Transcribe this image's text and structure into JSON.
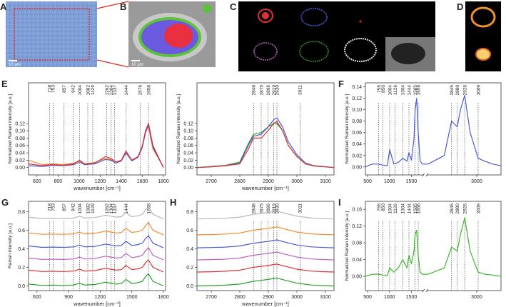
{
  "images": [
    {
      "panel": "A",
      "scale_bar": "10 µm"
    },
    {
      "panel": "B",
      "scale_bar": "10 µm"
    },
    {
      "panel": "C"
    },
    {
      "panel": "D"
    }
  ],
  "chart_data": [
    {
      "type": "line",
      "panel": "E",
      "xlabel": "wavenumber [cm⁻¹]",
      "ylabel": "Normalized Raman intensity [a.u.]",
      "xlim": [
        520,
        1820
      ],
      "xticks": [
        600,
        800,
        1000,
        1200,
        1400,
        1600,
        1800
      ],
      "ylim": [
        -0.02,
        0.23
      ],
      "yticks": [
        {
          "value": 0,
          "label": "0.00"
        },
        0.02,
        0.04,
        0.06,
        0.08,
        {
          "value": 0.1,
          "label": "0.10"
        },
        0.12
      ],
      "peaks": [
        718,
        753,
        857,
        942,
        1004,
        1082,
        1129,
        1262,
        1304,
        1337,
        1444,
        1579,
        1658
      ],
      "x": [
        520,
        650,
        750,
        850,
        950,
        1004,
        1050,
        1150,
        1250,
        1300,
        1350,
        1400,
        1444,
        1500,
        1560,
        1600,
        1630,
        1658,
        1700,
        1800
      ],
      "series": [
        {
          "color": "#f08c30",
          "values": [
            0.02,
            0.008,
            0.01,
            0.008,
            0.012,
            0.018,
            0.01,
            0.014,
            0.025,
            0.022,
            0.015,
            0.02,
            0.04,
            0.02,
            0.03,
            0.058,
            0.1,
            0.11,
            0.05,
            0.002
          ]
        },
        {
          "color": "#4a5bd8",
          "values": [
            0.005,
            0.003,
            0.006,
            0.005,
            0.008,
            0.015,
            0.008,
            0.01,
            0.022,
            0.02,
            0.012,
            0.018,
            0.04,
            0.018,
            0.028,
            0.055,
            0.095,
            0.115,
            0.055,
            0.0
          ]
        },
        {
          "color": "#e03030",
          "values": [
            0.01,
            0.005,
            0.008,
            0.006,
            0.01,
            0.02,
            0.01,
            0.012,
            0.03,
            0.025,
            0.015,
            0.02,
            0.045,
            0.02,
            0.03,
            0.06,
            0.1,
            0.12,
            0.06,
            0.0
          ]
        }
      ]
    },
    {
      "type": "line",
      "xlabel": "wavenumber [cm⁻¹]",
      "ylabel": "Normalized Raman intensity [a.u.]",
      "xlim": [
        2650,
        3130
      ],
      "xticks": [
        2700,
        2800,
        2900,
        3000,
        3100
      ],
      "ylim": [
        -0.02,
        0.23
      ],
      "yticks": [
        {
          "value": 0,
          "label": "0.00"
        },
        0.02,
        0.04,
        0.06,
        0.08,
        {
          "value": 0.1,
          "label": "0.10"
        },
        0.12
      ],
      "peaks": [
        2848,
        2875,
        2899,
        2919,
        2930,
        3011
      ],
      "x": [
        2650,
        2700,
        2750,
        2800,
        2830,
        2848,
        2875,
        2899,
        2919,
        2930,
        2950,
        2970,
        3000,
        3030,
        3060,
        3100,
        3130
      ],
      "series": [
        {
          "color": "#2aa02a",
          "values": [
            0,
            0.003,
            0.006,
            0.015,
            0.065,
            0.09,
            0.095,
            0.11,
            0.12,
            0.12,
            0.1,
            0.06,
            0.03,
            0.01,
            0.004,
            0.002,
            0
          ]
        },
        {
          "color": "#4a5bd8",
          "values": [
            0,
            0.002,
            0.005,
            0.012,
            0.06,
            0.085,
            0.09,
            0.11,
            0.13,
            0.135,
            0.11,
            0.07,
            0.035,
            0.012,
            0.005,
            0.002,
            0
          ]
        },
        {
          "color": "#e03030",
          "values": [
            0,
            0.002,
            0.005,
            0.01,
            0.05,
            0.08,
            0.08,
            0.1,
            0.12,
            0.125,
            0.1,
            0.06,
            0.03,
            0.01,
            0.005,
            0.002,
            0
          ]
        }
      ]
    },
    {
      "type": "line",
      "panel": "F",
      "ylabel": "Normalized Raman intensity [a.u.]",
      "xlim": [
        450,
        3150
      ],
      "xbreak": [
        1750,
        2700
      ],
      "xticks": [
        500,
        1000,
        1500,
        3000
      ],
      "ylim": [
        -0.014,
        0.147
      ],
      "yticks": [
        {
          "value": 0,
          "label": "0.00"
        },
        0.02,
        0.04,
        0.06,
        0.08,
        {
          "value": 0.1,
          "label": "0.10"
        },
        0.12,
        0.14
      ],
      "peaks": [
        755,
        850,
        1004,
        1126,
        1304,
        1444,
        1585,
        1656,
        2845,
        2880,
        2926,
        3009
      ],
      "x": [
        450,
        600,
        755,
        850,
        950,
        1004,
        1100,
        1200,
        1304,
        1400,
        1444,
        1500,
        1560,
        1585,
        1620,
        1656,
        1700,
        1750,
        2700,
        2800,
        2845,
        2880,
        2900,
        2926,
        2960,
        3009,
        3050,
        3100,
        3150
      ],
      "series": [
        {
          "color": "#4a5bd8",
          "values": [
            0,
            0.005,
            0.005,
            0.003,
            0.002,
            0.03,
            0.005,
            0.008,
            0.015,
            0.01,
            0.025,
            0.012,
            0.05,
            0.1,
            0.12,
            0.06,
            0.01,
            0.005,
            0.005,
            0.02,
            0.08,
            0.07,
            0.1,
            0.125,
            0.06,
            0.015,
            0.01,
            0.005,
            0.002
          ]
        }
      ]
    },
    {
      "type": "line",
      "panel": "G",
      "xlabel": "wavenumber [cm⁻¹]",
      "ylabel": "Raman intensity [a.u.]",
      "xlim": [
        520,
        1820
      ],
      "xticks": [
        600,
        900,
        1200,
        1500,
        1800
      ],
      "ylim": [
        -0.05,
        0.91
      ],
      "yticks": [
        {
          "value": 0,
          "label": "0.0"
        },
        0.2,
        0.4,
        0.6,
        0.8
      ],
      "peaks": [
        718,
        753,
        857,
        942,
        1004,
        1082,
        1129,
        1262,
        1304,
        1337,
        1444,
        1658
      ],
      "x": [
        520,
        650,
        750,
        850,
        950,
        1004,
        1050,
        1150,
        1250,
        1300,
        1350,
        1400,
        1444,
        1500,
        1560,
        1600,
        1630,
        1658,
        1700,
        1800
      ],
      "series": [
        {
          "color": "#2aa02a",
          "values": [
            0.02,
            0.005,
            0.008,
            0.005,
            0.01,
            0.03,
            0.01,
            0.015,
            0.04,
            0.03,
            0.02,
            0.025,
            0.07,
            0.025,
            0.035,
            0.05,
            0.1,
            0.13,
            0.05,
            0.0
          ]
        },
        {
          "color": "#e03030",
          "values": [
            0.17,
            0.155,
            0.158,
            0.155,
            0.16,
            0.18,
            0.16,
            0.165,
            0.19,
            0.18,
            0.17,
            0.175,
            0.22,
            0.175,
            0.185,
            0.2,
            0.25,
            0.28,
            0.2,
            0.15
          ]
        },
        {
          "color": "#c060c8",
          "values": [
            0.3,
            0.285,
            0.288,
            0.285,
            0.29,
            0.31,
            0.29,
            0.295,
            0.32,
            0.31,
            0.3,
            0.305,
            0.35,
            0.305,
            0.315,
            0.33,
            0.38,
            0.41,
            0.33,
            0.28
          ]
        },
        {
          "color": "#4a5bd8",
          "values": [
            0.43,
            0.415,
            0.418,
            0.415,
            0.42,
            0.44,
            0.42,
            0.425,
            0.45,
            0.44,
            0.43,
            0.435,
            0.48,
            0.435,
            0.445,
            0.46,
            0.51,
            0.54,
            0.46,
            0.41
          ]
        },
        {
          "color": "#f08c30",
          "values": [
            0.57,
            0.555,
            0.558,
            0.555,
            0.56,
            0.58,
            0.56,
            0.565,
            0.59,
            0.58,
            0.57,
            0.575,
            0.62,
            0.575,
            0.585,
            0.6,
            0.65,
            0.68,
            0.6,
            0.55
          ]
        },
        {
          "color": "#b8b8b8",
          "values": [
            0.74,
            0.725,
            0.728,
            0.725,
            0.73,
            0.75,
            0.73,
            0.735,
            0.76,
            0.75,
            0.74,
            0.745,
            0.79,
            0.745,
            0.755,
            0.77,
            0.82,
            0.85,
            0.77,
            0.72
          ]
        }
      ]
    },
    {
      "type": "line",
      "panel": "H",
      "xlabel": "wavenumber [cm⁻¹]",
      "xlim": [
        2650,
        3130
      ],
      "xticks": [
        2700,
        2800,
        2900,
        3000,
        3100
      ],
      "ylim": [
        -0.05,
        0.91
      ],
      "yticks": [
        {
          "value": 0,
          "label": "0.0"
        },
        0.2,
        0.4,
        0.6,
        0.8
      ],
      "peaks": [
        2848,
        2875,
        2899,
        2919,
        2930,
        3011
      ],
      "x": [
        2650,
        2700,
        2750,
        2800,
        2848,
        2875,
        2899,
        2919,
        2930,
        2960,
        3000,
        3050,
        3100,
        3130
      ],
      "series": [
        {
          "color": "#2aa02a",
          "values": [
            0,
            0.003,
            0.008,
            0.02,
            0.05,
            0.06,
            0.07,
            0.08,
            0.085,
            0.06,
            0.03,
            0.01,
            0.003,
            0
          ]
        },
        {
          "color": "#e03030",
          "values": [
            0.15,
            0.153,
            0.158,
            0.17,
            0.2,
            0.21,
            0.22,
            0.23,
            0.235,
            0.21,
            0.18,
            0.16,
            0.153,
            0.15
          ]
        },
        {
          "color": "#c060c8",
          "values": [
            0.28,
            0.283,
            0.288,
            0.3,
            0.33,
            0.34,
            0.35,
            0.36,
            0.365,
            0.34,
            0.31,
            0.29,
            0.283,
            0.28
          ]
        },
        {
          "color": "#4a5bd8",
          "values": [
            0.41,
            0.413,
            0.418,
            0.43,
            0.46,
            0.47,
            0.48,
            0.49,
            0.495,
            0.47,
            0.44,
            0.42,
            0.413,
            0.41
          ]
        },
        {
          "color": "#f08c30",
          "values": [
            0.55,
            0.553,
            0.558,
            0.57,
            0.6,
            0.61,
            0.62,
            0.63,
            0.635,
            0.61,
            0.58,
            0.56,
            0.553,
            0.55
          ]
        },
        {
          "color": "#b8b8b8",
          "values": [
            0.72,
            0.723,
            0.728,
            0.74,
            0.77,
            0.78,
            0.79,
            0.8,
            0.805,
            0.78,
            0.75,
            0.73,
            0.723,
            0.72
          ]
        }
      ]
    },
    {
      "type": "line",
      "panel": "I",
      "ylabel": "Normalized Raman intensity [a.u.]",
      "xlim": [
        450,
        3150
      ],
      "xbreak": [
        1750,
        2700
      ],
      "xticks": [
        500,
        1000,
        1500,
        3000
      ],
      "ylim": [
        -0.034,
        0.179
      ],
      "yticks": [
        {
          "value": 0,
          "label": "0.00"
        },
        0.04,
        0.08,
        0.12,
        0.16
      ],
      "peaks": [
        755,
        850,
        1004,
        1126,
        1304,
        1444,
        1585,
        1656,
        2845,
        2880,
        2926,
        3009
      ],
      "x": [
        450,
        600,
        755,
        850,
        950,
        1004,
        1100,
        1200,
        1304,
        1400,
        1444,
        1500,
        1560,
        1585,
        1620,
        1656,
        1700,
        1750,
        2700,
        2800,
        2845,
        2880,
        2900,
        2926,
        2960,
        3009,
        3050,
        3100,
        3150
      ],
      "series": [
        {
          "color": "#3cb82a",
          "values": [
            0,
            0.005,
            0.005,
            0.003,
            0.002,
            0.02,
            0.01,
            0.02,
            0.04,
            0.02,
            0.05,
            0.03,
            0.06,
            0.1,
            0.11,
            0.05,
            0.01,
            0.005,
            0.005,
            0.02,
            0.07,
            0.06,
            0.1,
            0.14,
            0.06,
            0.01,
            0.005,
            0.003,
            0
          ]
        }
      ]
    }
  ]
}
